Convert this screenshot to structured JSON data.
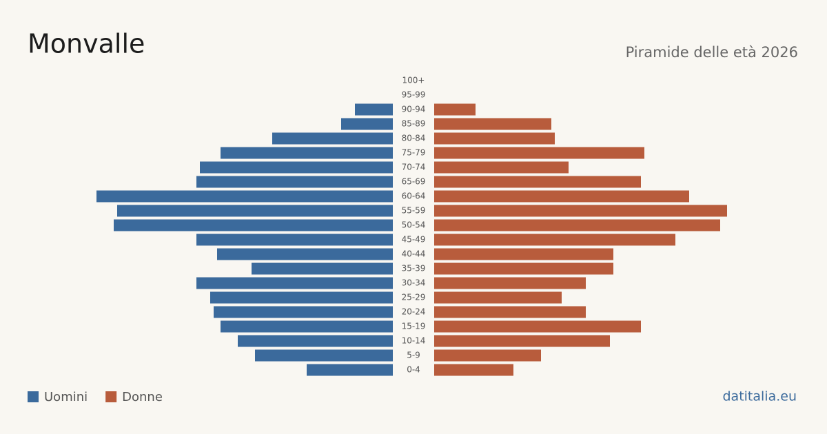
{
  "chart_data": {
    "type": "pyramid",
    "title": "Monvalle",
    "subtitle": "Piramide delle età 2026",
    "source": "datitalia.eu",
    "categories": [
      "100+",
      "95-99",
      "90-94",
      "85-89",
      "80-84",
      "75-79",
      "70-74",
      "65-69",
      "60-64",
      "55-59",
      "50-54",
      "45-49",
      "40-44",
      "35-39",
      "30-34",
      "25-29",
      "20-24",
      "15-19",
      "10-14",
      "5-9",
      "0-4"
    ],
    "series": [
      {
        "name": "Uomini",
        "color": "#3b6a9c",
        "values": [
          0,
          0,
          55,
          75,
          175,
          250,
          280,
          285,
          430,
          400,
          405,
          285,
          255,
          205,
          285,
          265,
          260,
          250,
          225,
          200,
          125
        ]
      },
      {
        "name": "Donne",
        "color": "#b85c3c",
        "values": [
          0,
          0,
          60,
          170,
          175,
          305,
          195,
          300,
          370,
          425,
          415,
          350,
          260,
          260,
          220,
          185,
          220,
          300,
          255,
          155,
          115
        ]
      }
    ]
  }
}
